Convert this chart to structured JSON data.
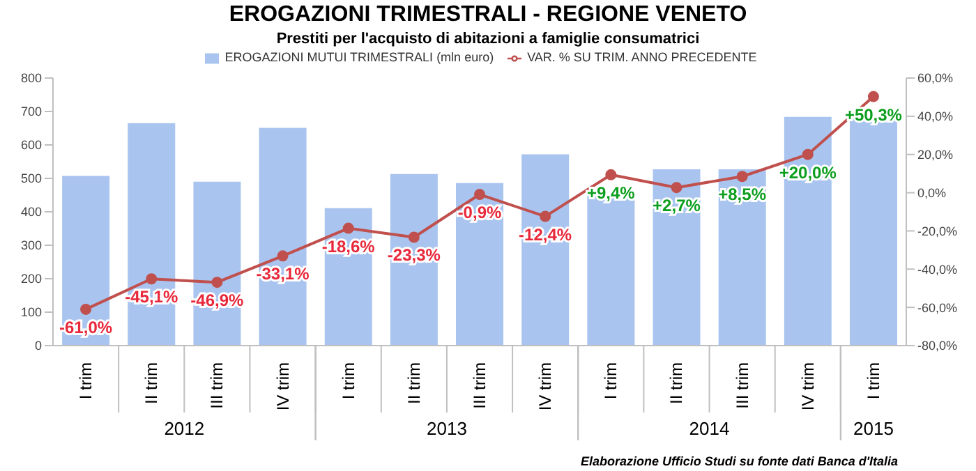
{
  "chart_data": {
    "type": "bar",
    "title": "EROGAZIONI TRIMESTRALI - REGIONE VENETO",
    "subtitle": "Prestiti per l'acquisto di abitazioni a famiglie consumatrici",
    "categories": [
      "I trim",
      "II trim",
      "III trim",
      "IV trim",
      "I trim",
      "II trim",
      "III trim",
      "IV trim",
      "I trim",
      "II trim",
      "III trim",
      "IV trim",
      "I trim"
    ],
    "series": [
      {
        "name": "EROGAZIONI MUTUI TRIMESTRALI (mln euro)",
        "color": "#a9c4ef",
        "values": [
          505,
          663,
          488,
          649,
          409,
          511,
          484,
          570,
          448,
          525,
          525,
          682,
          676
        ]
      },
      {
        "name": "VAR. % SU TRIM. ANNO PRECEDENTE",
        "type": "line",
        "axis": "y2",
        "color": "#c0504d",
        "values": [
          -61.0,
          -45.1,
          -46.9,
          -33.1,
          -18.6,
          -23.3,
          -0.9,
          -12.4,
          9.4,
          2.7,
          8.5,
          20.0,
          50.3
        ],
        "value_labels": [
          "-61,0%",
          "-45,1%",
          "-46,9%",
          "-33,1%",
          "-18,6%",
          "-23,3%",
          "-0,9%",
          "-12,4%",
          "+9,4%",
          "+2,7%",
          "+8,5%",
          "+20,0%",
          "+50,3%"
        ]
      }
    ],
    "ylim": [
      0,
      800
    ],
    "yticks": [
      0,
      100,
      200,
      300,
      400,
      500,
      600,
      700,
      800
    ],
    "y2lim": [
      -80,
      60
    ],
    "y2ticks": [
      {
        "value": -80,
        "label": "-80,0%"
      },
      {
        "value": -60,
        "label": "-60,0%"
      },
      {
        "value": -40,
        "label": "-40,0%"
      },
      {
        "value": -20,
        "label": "-20,0%"
      },
      {
        "value": 0,
        "label": "0,0%"
      },
      {
        "value": 20,
        "label": "20,0%"
      },
      {
        "value": 40,
        "label": "40,0%"
      },
      {
        "value": 60,
        "label": "60,0%"
      }
    ],
    "annotations": [
      "2012",
      "2013",
      "2014",
      "2015",
      "Elaborazione Ufficio Studi su fonte dati Banca d'Italia"
    ],
    "legend": "top",
    "grid": false,
    "marker": "circle"
  }
}
